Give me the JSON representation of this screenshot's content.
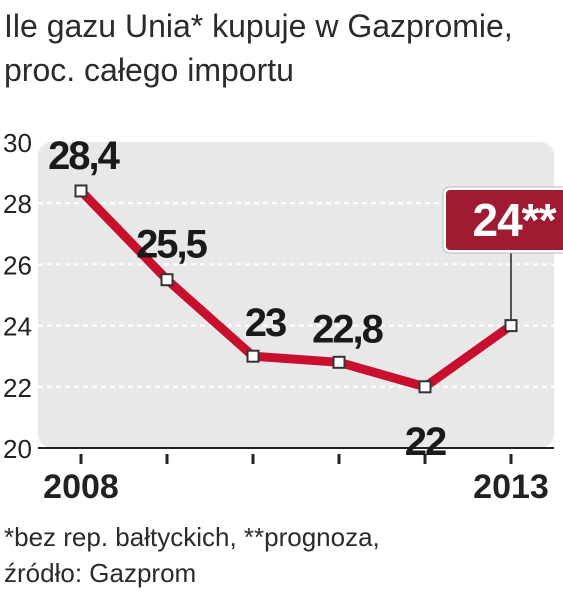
{
  "title_line1": "Ile gazu Unia* kupuje w Gazpromie,",
  "title_line2": "proc. całego importu",
  "footnote_line1": "*bez rep. bałtyckich, **prognoza,",
  "footnote_line2": "źródło: Gazprom",
  "colors": {
    "line": "#c8102e",
    "plot_bg": "#e8e8e8",
    "grid": "#ffffff",
    "label_box": "#9e1b32",
    "marker": "#ffffff",
    "marker_border": "#333333"
  },
  "chart_data": {
    "type": "line",
    "title": "Ile gazu Unia* kupuje w Gazpromie, proc. całego importu",
    "x": [
      2008,
      2009,
      2010,
      2011,
      2012,
      2013
    ],
    "x_tick_labels": [
      "2008",
      "",
      "",
      "",
      "",
      "2013"
    ],
    "series": [
      {
        "values": [
          28.4,
          25.5,
          23,
          22.8,
          22,
          24
        ],
        "labels": [
          "28,4",
          "25,5",
          "23",
          "22,8",
          "22",
          "24**"
        ]
      }
    ],
    "y_ticks": [
      "20",
      "22",
      "24",
      "26",
      "28",
      "30"
    ],
    "ylim": [
      20,
      30
    ],
    "xlim": [
      2007.5,
      2013.5
    ],
    "grid": true,
    "highlight_last": true
  }
}
